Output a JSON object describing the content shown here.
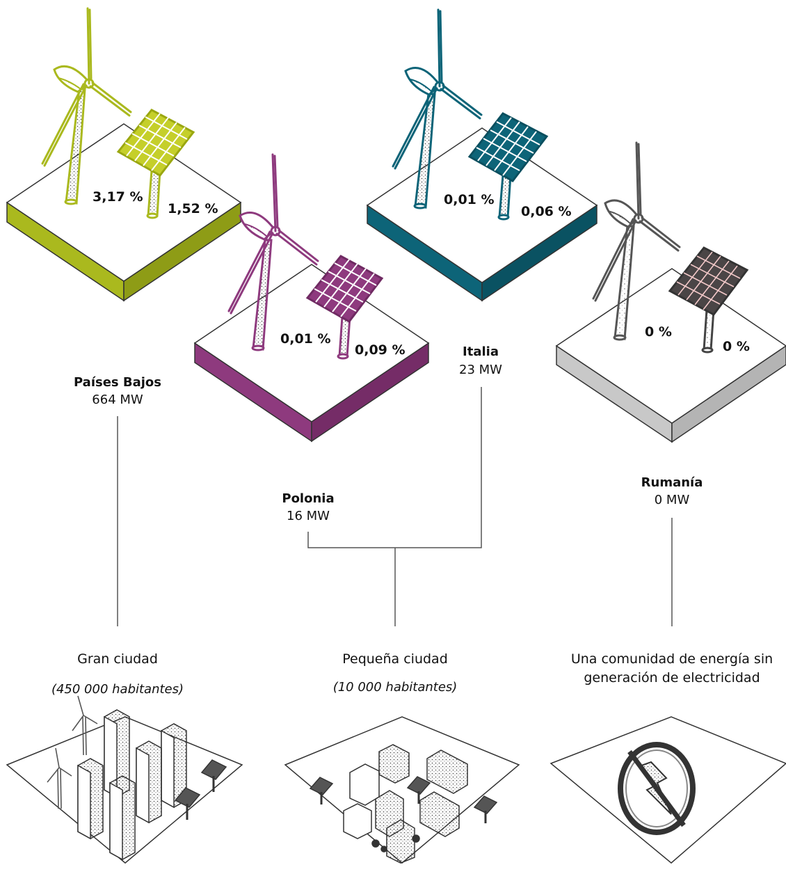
{
  "countries": [
    {
      "name": "Países Bajos",
      "capacity": "664 MW",
      "wind_share": "3,17 %",
      "solar_share": "1,52 %",
      "color": "#aab91e"
    },
    {
      "name": "Polonia",
      "capacity": "16 MW",
      "wind_share": "0,01 %",
      "solar_share": "0,09 %",
      "color": "#8e3a7e"
    },
    {
      "name": "Italia",
      "capacity": "23 MW",
      "wind_share": "0,01 %",
      "solar_share": "0,06 %",
      "color": "#0d6478"
    },
    {
      "name": "Rumanía",
      "capacity": "0 MW",
      "wind_share": "0 %",
      "solar_share": "0 %",
      "color": "#c8c8c8"
    }
  ],
  "outcomes": [
    {
      "title": "Gran ciudad",
      "subtitle": "(450 000 habitantes)",
      "icon": "city-icon"
    },
    {
      "title": "Pequeña ciudad",
      "subtitle": "(10 000 habitantes)",
      "icon": "town-icon"
    },
    {
      "title_line1": "Una comunidad de energía sin",
      "title_line2": "generación de electricidad",
      "icon": "no-electricity-icon"
    }
  ],
  "colors": {
    "line": "#555555",
    "outline": "#333333"
  }
}
